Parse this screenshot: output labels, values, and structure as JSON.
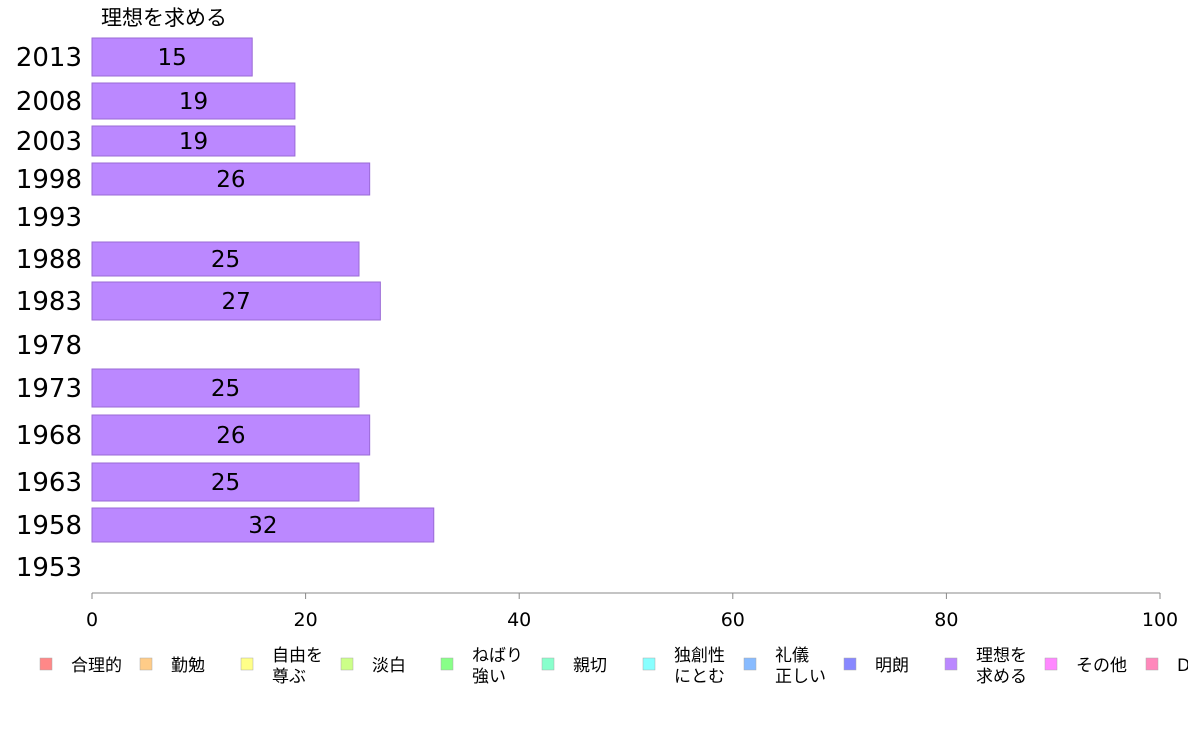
{
  "chart_data": {
    "type": "bar",
    "orientation": "horizontal",
    "title": "理想を求める",
    "categories": [
      "2013",
      "2008",
      "2003",
      "1998",
      "1993",
      "1988",
      "1983",
      "1978",
      "1973",
      "1968",
      "1963",
      "1958",
      "1953"
    ],
    "series": [
      {
        "name": "理想を求める",
        "values": [
          15,
          19,
          19,
          26,
          null,
          25,
          27,
          null,
          25,
          26,
          25,
          32,
          null
        ]
      }
    ],
    "data_labels": [
      "15",
      "19",
      "19",
      "26",
      "",
      "25",
      "27",
      "",
      "25",
      "26",
      "25",
      "32",
      ""
    ],
    "xlim": [
      0,
      100
    ],
    "xticks": [
      "0",
      "20",
      "40",
      "60",
      "80",
      "100"
    ],
    "bar_color": "#bb88ff",
    "legend_position": "bottom",
    "legend": [
      {
        "lines": [
          "合理的"
        ],
        "color": "#ff8888"
      },
      {
        "lines": [
          "勤勉"
        ],
        "color": "#ffcc88"
      },
      {
        "lines": [
          "自由を",
          "尊ぶ"
        ],
        "color": "#ffff88"
      },
      {
        "lines": [
          "淡白"
        ],
        "color": "#ccff88"
      },
      {
        "lines": [
          "ねばり",
          "強い"
        ],
        "color": "#88ff88"
      },
      {
        "lines": [
          "親切"
        ],
        "color": "#88ffcc"
      },
      {
        "lines": [
          "独創性",
          "にとむ"
        ],
        "color": "#88ffff"
      },
      {
        "lines": [
          "礼儀",
          "正しい"
        ],
        "color": "#88bbff"
      },
      {
        "lines": [
          "明朗"
        ],
        "color": "#8888ff"
      },
      {
        "lines": [
          "理想を",
          "求める"
        ],
        "color": "#bb88ff"
      },
      {
        "lines": [
          "その他"
        ],
        "color": "#ff88ff"
      },
      {
        "lines": [
          "D"
        ],
        "color": "#ff88bb"
      }
    ]
  }
}
